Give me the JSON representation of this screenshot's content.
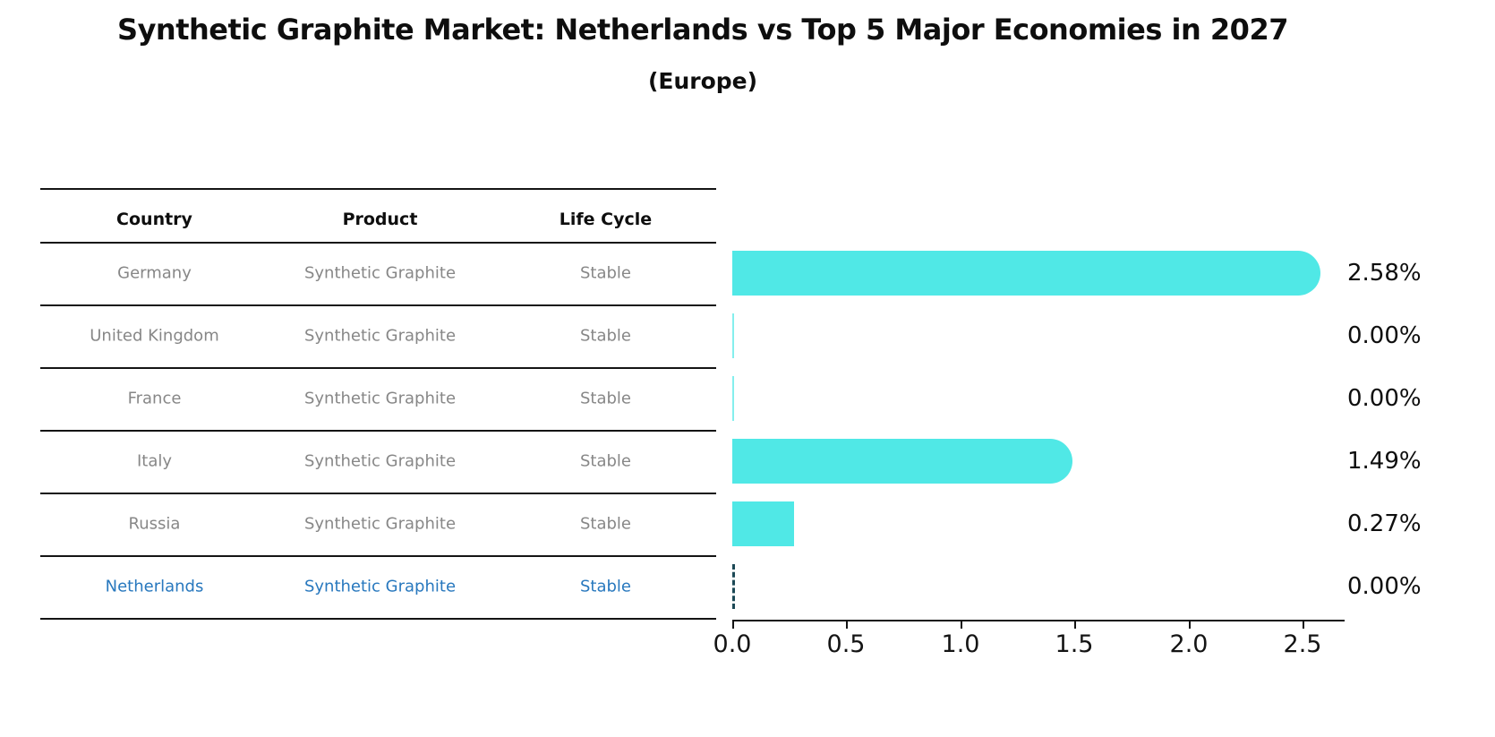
{
  "title": "Synthetic Graphite Market: Netherlands vs Top 5 Major Economies in 2027",
  "subtitle": "(Europe)",
  "table": {
    "headers": {
      "country": "Country",
      "product": "Product",
      "life_cycle": "Life Cycle"
    },
    "rows": [
      {
        "country": "Germany",
        "product": "Synthetic Graphite",
        "life_cycle": "Stable"
      },
      {
        "country": "United Kingdom",
        "product": "Synthetic Graphite",
        "life_cycle": "Stable"
      },
      {
        "country": "France",
        "product": "Synthetic Graphite",
        "life_cycle": "Stable"
      },
      {
        "country": "Italy",
        "product": "Synthetic Graphite",
        "life_cycle": "Stable"
      },
      {
        "country": "Russia",
        "product": "Synthetic Graphite",
        "life_cycle": "Stable"
      },
      {
        "country": "Netherlands",
        "product": "Synthetic Graphite",
        "life_cycle": "Stable"
      }
    ],
    "highlight_row": "Netherlands"
  },
  "chart_data": {
    "type": "bar",
    "orientation": "horizontal",
    "title": "Synthetic Graphite Market: Netherlands vs Top 5 Major Economies in 2027",
    "subtitle": "(Europe)",
    "categories": [
      "Germany",
      "United Kingdom",
      "France",
      "Italy",
      "Russia",
      "Netherlands"
    ],
    "values": [
      2.58,
      0.0,
      0.0,
      1.49,
      0.27,
      0.0
    ],
    "value_labels": [
      "2.58%",
      "0.00%",
      "0.00%",
      "1.49%",
      "0.27%",
      "0.00%"
    ],
    "x_tick_values": [
      0.0,
      0.5,
      1.0,
      1.5,
      2.0,
      2.5
    ],
    "x_tick_labels": [
      "0.0",
      "0.5",
      "1.0",
      "1.5",
      "2.0",
      "2.5"
    ],
    "xlim": [
      0,
      2.68
    ],
    "grid": false,
    "legend": "none",
    "bar_color": "#50E8E6",
    "highlight_index": 5,
    "highlight_style": "dashed-outline",
    "highlight_color": "#1C4956"
  },
  "colors": {
    "background": "#FFFFFF",
    "bar": "#50E8E6",
    "table_line": "#141414",
    "row_text": "#878787",
    "header_text": "#0E0E0E",
    "highlight_text": "#2878BE",
    "value_text": "#0E0E0E",
    "highlight_dash": "#1C4956"
  }
}
